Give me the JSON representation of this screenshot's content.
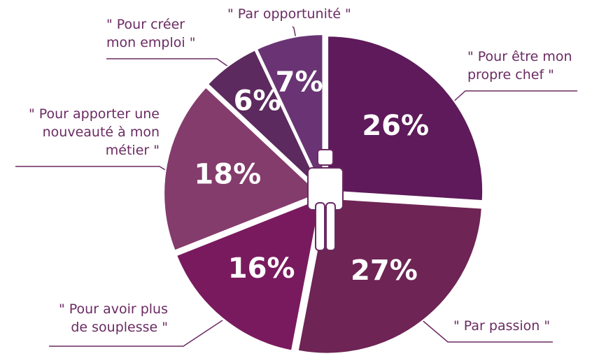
{
  "chart_data": {
    "type": "pie",
    "categories": [
      [
        "\" Pour être mon",
        "propre chef \""
      ],
      [
        "\" Par passion \""
      ],
      [
        "\" Pour avoir plus",
        "de souplesse \""
      ],
      [
        "\" Pour apporter une",
        "nouveauté à mon",
        "métier \""
      ],
      [
        "\" Pour créer",
        "mon emploi \""
      ],
      [
        "\" Par opportunité \""
      ]
    ],
    "values": [
      26,
      27,
      16,
      18,
      6,
      7
    ],
    "value_labels": [
      "26%",
      "27%",
      "16%",
      "18%",
      "6%",
      "7%"
    ],
    "colors": [
      "#5e1a5a",
      "#6e2454",
      "#7a1a5e",
      "#843c6c",
      "#5c2a5e",
      "#6a3474"
    ]
  }
}
